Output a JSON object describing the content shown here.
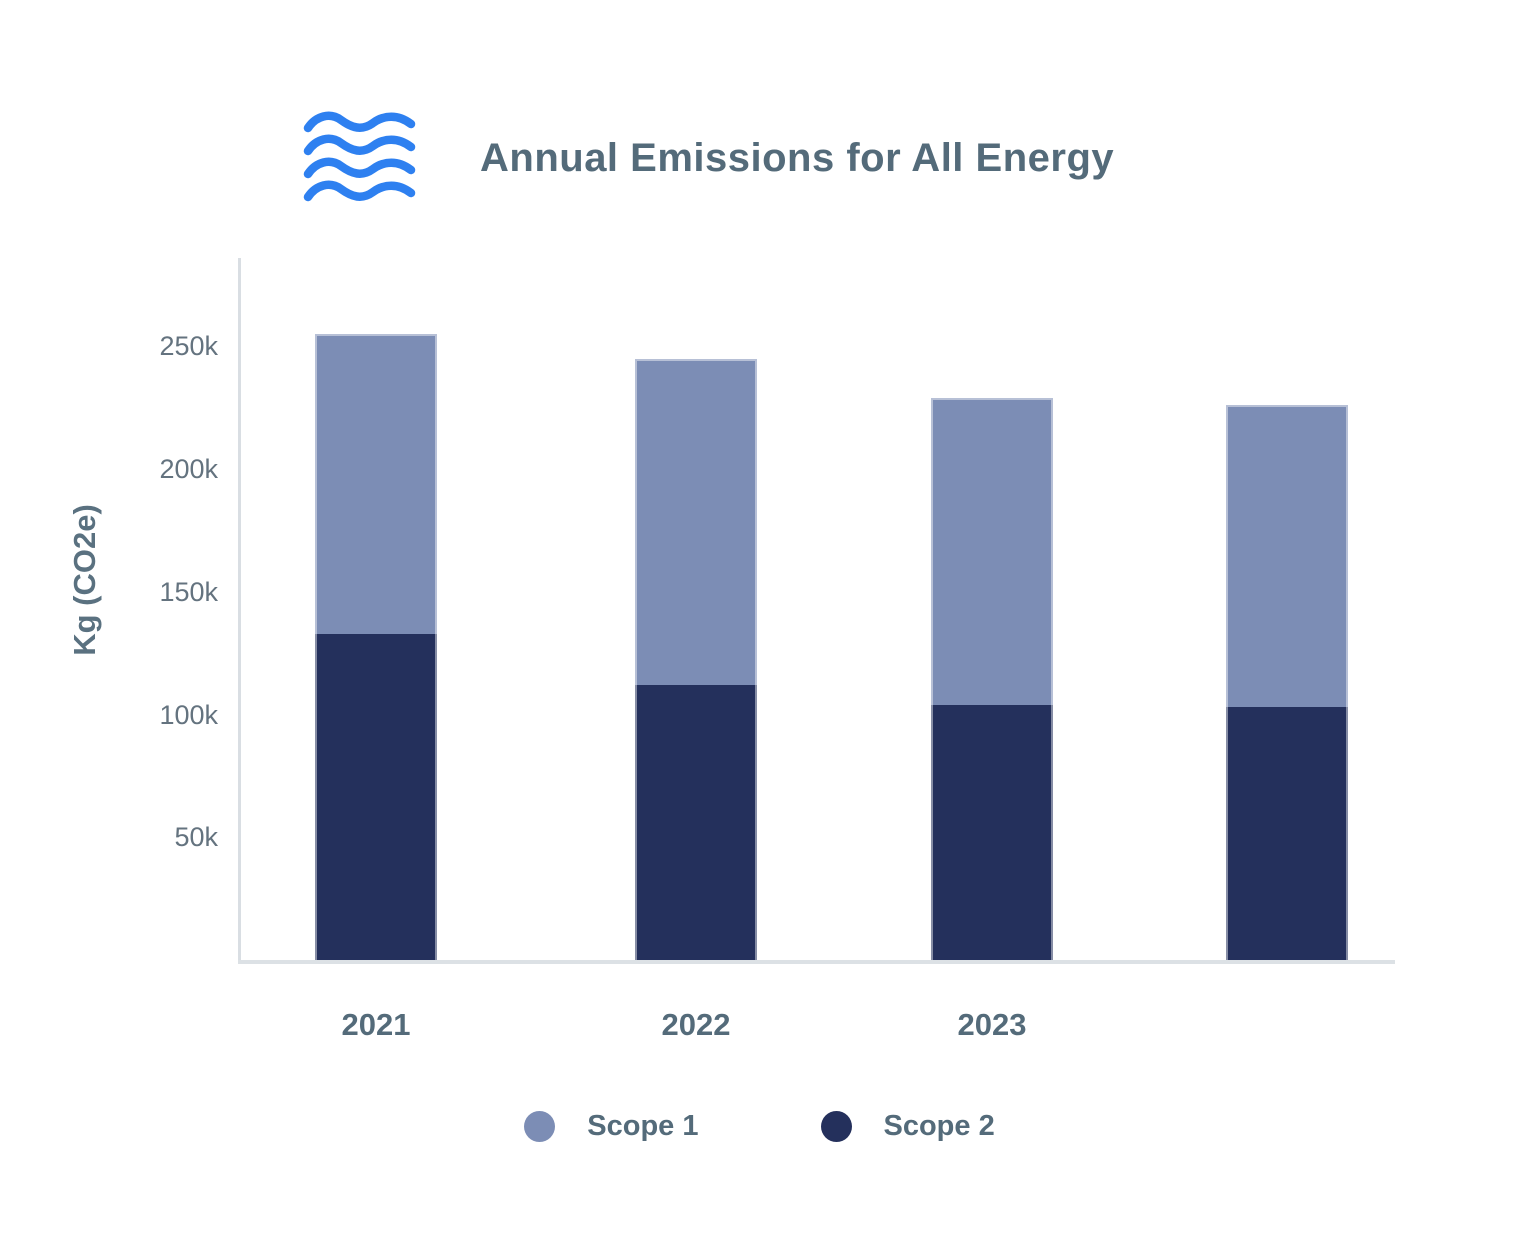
{
  "header": {
    "title": "Annual Emissions for All Energy",
    "logo_icon": "waves-logo",
    "logo_color": "#2E80F0"
  },
  "chart_data": {
    "type": "bar",
    "stacked": true,
    "title": "Annual Emissions for All Energy",
    "ylabel": "Kg (CO2e)",
    "xlabel": "",
    "categories": [
      "2021",
      "2022",
      "2023",
      ""
    ],
    "series": [
      {
        "name": "Scope 1",
        "color": "#7C8DB5",
        "values": [
          122000,
          133000,
          125000,
          123000
        ]
      },
      {
        "name": "Scope 2",
        "color": "#24305C",
        "values": [
          133000,
          112000,
          104000,
          103000
        ]
      }
    ],
    "stack_bottom": "Scope 2",
    "totals": [
      255000,
      245000,
      229000,
      226000
    ],
    "yticks": [
      {
        "label": "50k",
        "value": 50000
      },
      {
        "label": "100k",
        "value": 100000
      },
      {
        "label": "150k",
        "value": 150000
      },
      {
        "label": "200k",
        "value": 200000
      },
      {
        "label": "250k",
        "value": 250000
      }
    ],
    "ylim": [
      0,
      286000
    ],
    "grid": false,
    "legend_position": "bottom"
  },
  "legend": {
    "items": [
      {
        "label": "Scope 1",
        "color": "#7C8DB5"
      },
      {
        "label": "Scope 2",
        "color": "#24305C"
      }
    ]
  },
  "colors": {
    "title_text": "#546B7A",
    "tick_text": "#64737F",
    "axis_line": "#D9DEE3",
    "scope1": "#7C8DB5",
    "scope2": "#24305C",
    "logo_blue": "#2E80F0"
  }
}
